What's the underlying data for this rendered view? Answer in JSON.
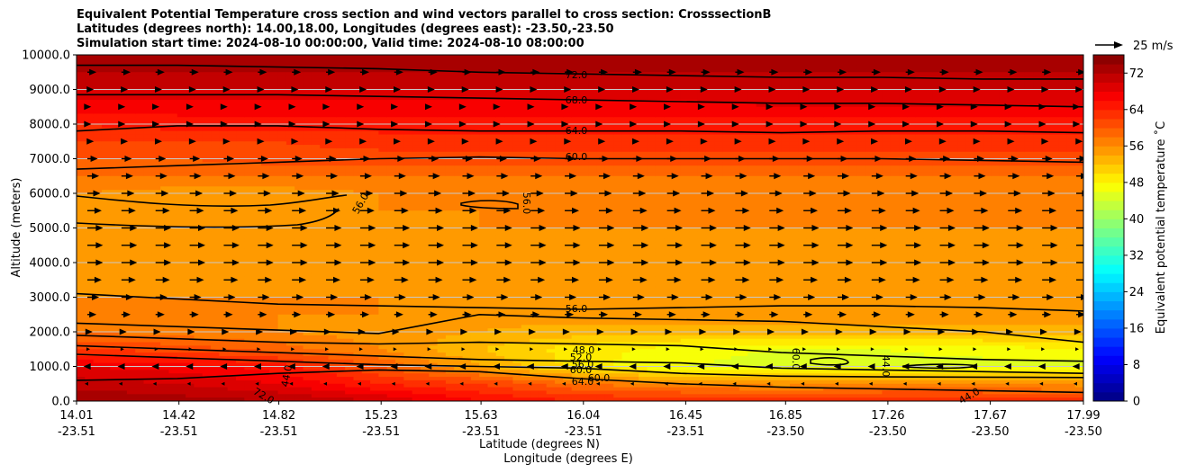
{
  "chart_data": {
    "type": "heatmap",
    "title_lines": [
      "Equivalent Potential Temperature cross section and wind vectors parallel to cross section: CrosssectionB",
      "Latitudes (degrees north): 14.00,18.00, Longitudes (degrees east): -23.50,-23.50",
      "Simulation start time: 2024-08-10 00:00:00, Valid time: 2024-08-10 08:00:00"
    ],
    "ylabel": "Altitude (meters)",
    "xlabel_lat": "Latitude (degrees N)",
    "xlabel_lon": "Longitude (degrees E)",
    "ylim": [
      0,
      10000
    ],
    "yticks": [
      "0.0",
      "1000.0",
      "2000.0",
      "3000.0",
      "4000.0",
      "5000.0",
      "6000.0",
      "7000.0",
      "8000.0",
      "9000.0",
      "10000.0"
    ],
    "xtick_lat": [
      "14.01",
      "14.42",
      "14.82",
      "15.23",
      "15.63",
      "16.04",
      "16.45",
      "16.85",
      "17.26",
      "17.67",
      "17.99"
    ],
    "xtick_lon": [
      "-23.51",
      "-23.51",
      "-23.51",
      "-23.51",
      "-23.51",
      "-23.51",
      "-23.51",
      "-23.50",
      "-23.50",
      "-23.50",
      "-23.50"
    ],
    "grid": "horizontal",
    "colorbar": {
      "label": "Equivalent potential temperature ˚C",
      "range": [
        0,
        76
      ],
      "ticks": [
        "0",
        "8",
        "16",
        "24",
        "32",
        "40",
        "48",
        "56",
        "64",
        "72"
      ],
      "colormap": "jet"
    },
    "quiver_key": "25 m/s",
    "contours": [
      {
        "label": "72.0",
        "altitudes": [
          9700,
          9700,
          9650,
          9600,
          9500,
          9450,
          9400,
          9350,
          9350,
          9300,
          9300
        ]
      },
      {
        "label": "68.0",
        "altitudes": [
          8850,
          8850,
          8850,
          8800,
          8750,
          8700,
          8650,
          8600,
          8600,
          8550,
          8500
        ]
      },
      {
        "label": "64.0",
        "altitudes": [
          7800,
          7950,
          7950,
          7850,
          7800,
          7800,
          7800,
          7750,
          7800,
          7800,
          7750
        ]
      },
      {
        "label": "60.0",
        "altitudes": [
          6700,
          6800,
          6900,
          7000,
          7050,
          7000,
          7000,
          7000,
          7000,
          6950,
          6900
        ]
      },
      {
        "label": "56.0",
        "altitudes": [
          3100,
          2950,
          2800,
          2750,
          2700,
          2650,
          2700,
          2750,
          2750,
          2700,
          2600
        ]
      }
    ],
    "contour_labels_shown": [
      "72.0",
      "68.0",
      "64.0",
      "60.0",
      "56.0",
      "56.0",
      "56.0",
      "48.0",
      "52.0",
      "56.0",
      "60.0",
      "60.0",
      "64.0",
      "60.0",
      "44.0",
      "44.0",
      "44.0",
      "72.0",
      "72.0"
    ],
    "background_theta": {
      "altitudes": [
        0,
        500,
        1000,
        1500,
        2000,
        2500,
        3000,
        3500,
        4000,
        4500,
        5000,
        5500,
        6000,
        6500,
        7000,
        7500,
        8000,
        8500,
        9000,
        9500,
        10000
      ],
      "column_positions": [
        0.0,
        0.1,
        0.2,
        0.3,
        0.4,
        0.5,
        0.6,
        0.7,
        0.8,
        0.9,
        1.0
      ],
      "values": [
        [
          74,
          73,
          72,
          70,
          66,
          64,
          64,
          64,
          64,
          64,
          64
        ],
        [
          71,
          70,
          68,
          64,
          62,
          58,
          56,
          55,
          56,
          56,
          55
        ],
        [
          68,
          67,
          65,
          60,
          54,
          49,
          46,
          45,
          45,
          45,
          45
        ],
        [
          62,
          61,
          59,
          56,
          52,
          49,
          47,
          46,
          46,
          47,
          48
        ],
        [
          58,
          57,
          56,
          55,
          54,
          53,
          53,
          53,
          53,
          53,
          53
        ],
        [
          57,
          57,
          56,
          56,
          55,
          55,
          55,
          55,
          55,
          55,
          55
        ],
        [
          56,
          56,
          56,
          56,
          56,
          56,
          56,
          56,
          56,
          56,
          56
        ],
        [
          55,
          55,
          55,
          54,
          55,
          55,
          55,
          55,
          55,
          55,
          55
        ],
        [
          55,
          55,
          55,
          54,
          55,
          55,
          55,
          55,
          55,
          55,
          55
        ],
        [
          55,
          55,
          55,
          55,
          55,
          55,
          55,
          55,
          55,
          55,
          55
        ],
        [
          55,
          55,
          55,
          55,
          56,
          56,
          56,
          56,
          56,
          56,
          56
        ],
        [
          55,
          55,
          55,
          56,
          56,
          56,
          56,
          56,
          56,
          56,
          56
        ],
        [
          56,
          55,
          55,
          56,
          57,
          57,
          57,
          57,
          57,
          57,
          57
        ],
        [
          58,
          58,
          58,
          58,
          58,
          58,
          58,
          58,
          58,
          58,
          58
        ],
        [
          60,
          60,
          61,
          61,
          61,
          61,
          61,
          61,
          61,
          61,
          61
        ],
        [
          62,
          62,
          62,
          63,
          63,
          63,
          63,
          63,
          63,
          63,
          63
        ],
        [
          64,
          65,
          65,
          65,
          65,
          65,
          65,
          65,
          65,
          65,
          65
        ],
        [
          67,
          67,
          67,
          67,
          67,
          67,
          67,
          68,
          68,
          68,
          68
        ],
        [
          70,
          70,
          70,
          70,
          70,
          70,
          70,
          70,
          70,
          70,
          70
        ],
        [
          72,
          72,
          72,
          72,
          72,
          72,
          72,
          72,
          72,
          72,
          72
        ],
        [
          74,
          74,
          74,
          74,
          74,
          74,
          74,
          74,
          74,
          74,
          74
        ]
      ]
    },
    "wind_vectors": {
      "description_rows_m": [
        0,
        500,
        1000,
        1500,
        2000,
        2500,
        3000,
        3500,
        4000,
        4500,
        5000,
        5500,
        6000,
        6500,
        7000,
        7500,
        8000,
        8500,
        9000,
        9500
      ],
      "row_speeds_ms": [
        0,
        -2,
        -3,
        2,
        4,
        7,
        9,
        11,
        12,
        12,
        12,
        11,
        10,
        9,
        8,
        5,
        3,
        3,
        5,
        7
      ]
    }
  }
}
